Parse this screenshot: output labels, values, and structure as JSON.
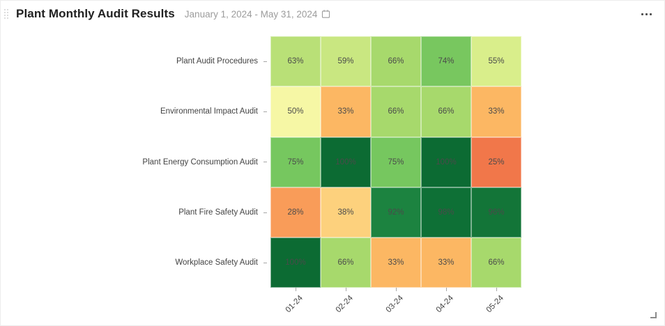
{
  "widget": {
    "title": "Plant Monthly Audit Results",
    "date_range": "January 1, 2024 - May 31, 2024"
  },
  "icons": {
    "drag_handle": "drag-handle-dots",
    "calendar": "calendar-outline",
    "more_options": "horizontal-ellipsis",
    "resize_corner": "resize-corner"
  },
  "colors": {
    "background": "#ffffff",
    "title_text": "#212121",
    "date_text": "#9c9c9c",
    "axis_label_text": "#434343",
    "cell_value_text": "#4a4a4a",
    "tick": "#a6a6a6"
  },
  "chart_data": {
    "type": "heatmap",
    "title": "Plant Monthly Audit Results",
    "unit": "%",
    "value_range": [
      0,
      100
    ],
    "colormap": "red-yellow-green (RdYlGn)",
    "legend": "none",
    "grid": "faint white cell borders",
    "x_categories": [
      "01-24",
      "02-24",
      "03-24",
      "04-24",
      "05-24"
    ],
    "y_categories": [
      "Plant Audit Procedures",
      "Environmental Impact Audit",
      "Plant Energy Consumption Audit",
      "Plant Fire Safety Audit",
      "Workplace Safety Audit"
    ],
    "rows": [
      {
        "label": "Plant Audit Procedures",
        "cells": [
          {
            "v": 63,
            "color": "#b9e077"
          },
          {
            "v": 59,
            "color": "#c9e781"
          },
          {
            "v": 66,
            "color": "#a7d96c"
          },
          {
            "v": 74,
            "color": "#78c75f"
          },
          {
            "v": 55,
            "color": "#d9ee8b"
          }
        ]
      },
      {
        "label": "Environmental Impact Audit",
        "cells": [
          {
            "v": 50,
            "color": "#f6f7a5"
          },
          {
            "v": 33,
            "color": "#fcb763"
          },
          {
            "v": 66,
            "color": "#a7d96c"
          },
          {
            "v": 66,
            "color": "#a7d96c"
          },
          {
            "v": 33,
            "color": "#fcb763"
          }
        ]
      },
      {
        "label": "Plant Energy Consumption Audit",
        "cells": [
          {
            "v": 75,
            "color": "#76c75f"
          },
          {
            "v": 100,
            "color": "#0c6b33"
          },
          {
            "v": 75,
            "color": "#76c75f"
          },
          {
            "v": 100,
            "color": "#0c6b33"
          },
          {
            "v": 25,
            "color": "#f1774a"
          }
        ]
      },
      {
        "label": "Plant Fire Safety Audit",
        "cells": [
          {
            "v": 28,
            "color": "#f99c59"
          },
          {
            "v": 38,
            "color": "#fdd17d"
          },
          {
            "v": 92,
            "color": "#1c8340"
          },
          {
            "v": 98,
            "color": "#0e7036"
          },
          {
            "v": 96,
            "color": "#137538"
          }
        ]
      },
      {
        "label": "Workplace Safety Audit",
        "cells": [
          {
            "v": 100,
            "color": "#0c6b33"
          },
          {
            "v": 66,
            "color": "#a7d96c"
          },
          {
            "v": 33,
            "color": "#fcb763"
          },
          {
            "v": 33,
            "color": "#fcb763"
          },
          {
            "v": 66,
            "color": "#a7d96c"
          }
        ]
      }
    ]
  }
}
